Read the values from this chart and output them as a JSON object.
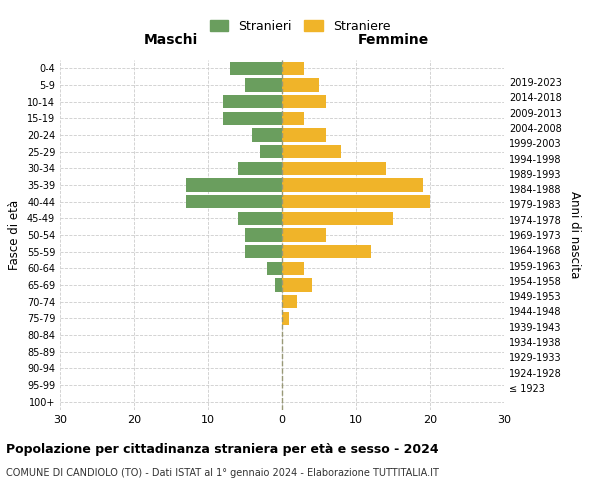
{
  "age_groups": [
    "100+",
    "95-99",
    "90-94",
    "85-89",
    "80-84",
    "75-79",
    "70-74",
    "65-69",
    "60-64",
    "55-59",
    "50-54",
    "45-49",
    "40-44",
    "35-39",
    "30-34",
    "25-29",
    "20-24",
    "15-19",
    "10-14",
    "5-9",
    "0-4"
  ],
  "birth_years": [
    "≤ 1923",
    "1924-1928",
    "1929-1933",
    "1934-1938",
    "1939-1943",
    "1944-1948",
    "1949-1953",
    "1954-1958",
    "1959-1963",
    "1964-1968",
    "1969-1973",
    "1974-1978",
    "1979-1983",
    "1984-1988",
    "1989-1993",
    "1994-1998",
    "1999-2003",
    "2004-2008",
    "2009-2013",
    "2014-2018",
    "2019-2023"
  ],
  "maschi": [
    0,
    0,
    0,
    0,
    0,
    0,
    0,
    1,
    2,
    5,
    5,
    6,
    13,
    13,
    6,
    3,
    4,
    8,
    8,
    5,
    7
  ],
  "femmine": [
    0,
    0,
    0,
    0,
    0,
    1,
    2,
    4,
    3,
    12,
    6,
    15,
    20,
    19,
    14,
    8,
    6,
    3,
    6,
    5,
    3
  ],
  "color_maschi": "#6a9e5e",
  "color_femmine": "#f0b429",
  "background_color": "#ffffff",
  "grid_color": "#cccccc",
  "title": "Popolazione per cittadinanza straniera per età e sesso - 2024",
  "subtitle": "COMUNE DI CANDIOLO (TO) - Dati ISTAT al 1° gennaio 2024 - Elaborazione TUTTITALIA.IT",
  "xlabel_left": "Maschi",
  "xlabel_right": "Femmine",
  "ylabel_left": "Fasce di età",
  "ylabel_right": "Anni di nascita",
  "legend_stranieri": "Stranieri",
  "legend_straniere": "Straniere",
  "xlim": 30,
  "bar_height": 0.8
}
